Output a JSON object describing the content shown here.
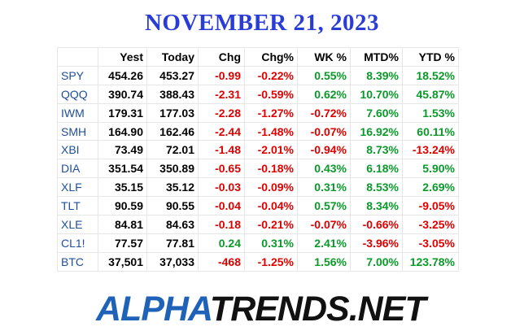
{
  "header": {
    "title": "NOVEMBER 21, 2023"
  },
  "table": {
    "columns": [
      "",
      "Yest",
      "Today",
      "Chg",
      "Chg%",
      "WK %",
      "MTD%",
      "YTD %"
    ],
    "rows": [
      [
        "SPY",
        "454.26",
        "453.27",
        "-0.99",
        "-0.22%",
        "0.55%",
        "8.39%",
        "18.52%"
      ],
      [
        "QQQ",
        "390.74",
        "388.43",
        "-2.31",
        "-0.59%",
        "0.62%",
        "10.70%",
        "45.87%"
      ],
      [
        "IWM",
        "179.31",
        "177.03",
        "-2.28",
        "-1.27%",
        "-0.72%",
        "7.60%",
        "1.53%"
      ],
      [
        "SMH",
        "164.90",
        "162.46",
        "-2.44",
        "-1.48%",
        "-0.07%",
        "16.92%",
        "60.11%"
      ],
      [
        "XBI",
        "73.49",
        "72.01",
        "-1.48",
        "-2.01%",
        "-0.94%",
        "8.73%",
        "-13.24%"
      ],
      [
        "DIA",
        "351.54",
        "350.89",
        "-0.65",
        "-0.18%",
        "0.43%",
        "6.18%",
        "5.90%"
      ],
      [
        "XLF",
        "35.15",
        "35.12",
        "-0.03",
        "-0.09%",
        "0.31%",
        "8.53%",
        "2.69%"
      ],
      [
        "TLT",
        "90.59",
        "90.55",
        "-0.04",
        "-0.04%",
        "0.57%",
        "8.34%",
        "-9.05%"
      ],
      [
        "XLE",
        "84.81",
        "84.63",
        "-0.18",
        "-0.21%",
        "-0.07%",
        "-0.66%",
        "-3.25%"
      ],
      [
        "CL1!",
        "77.57",
        "77.81",
        "0.24",
        "0.31%",
        "2.41%",
        "-3.96%",
        "-3.05%"
      ],
      [
        "BTC",
        "37,501",
        "37,033",
        "-468",
        "-1.25%",
        "1.56%",
        "7.00%",
        "123.78%"
      ]
    ]
  },
  "logo": {
    "part1": "ALPHA",
    "part2": "TRENDS.NET"
  }
}
